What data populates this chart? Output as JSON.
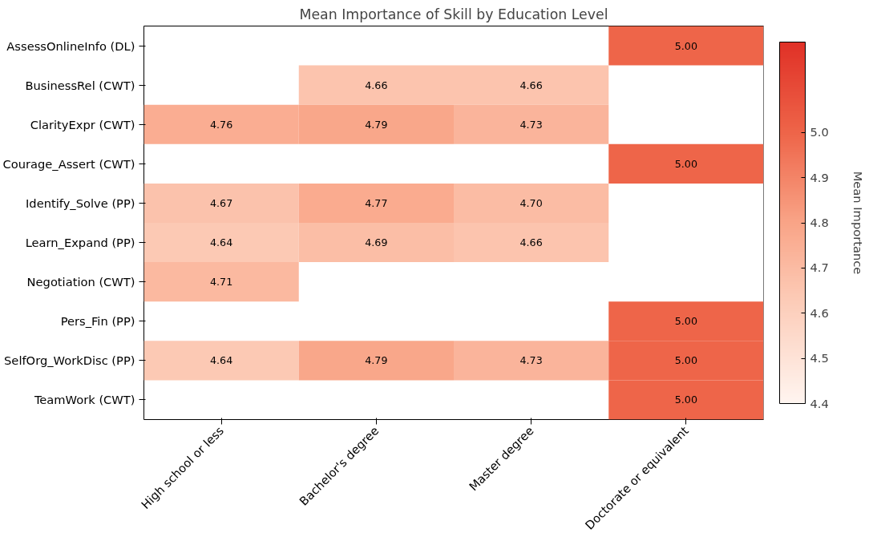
{
  "chart_data": {
    "type": "heatmap",
    "title": "Mean Importance of Skill by Education Level",
    "categories": [
      "High school or less",
      "Bachelor's degree",
      "Master degree",
      "Doctorate or equivalent"
    ],
    "y_categories": [
      "AssessOnlineInfo (DL)",
      "BusinessRel (CWT)",
      "ClarityExpr (CWT)",
      "Courage_Assert (CWT)",
      "Identify_Solve (PP)",
      "Learn_Expand (PP)",
      "Negotiation (CWT)",
      "Pers_Fin (PP)",
      "SelfOrg_WorkDisc (PP)",
      "TeamWork (CWT)"
    ],
    "cells": [
      [
        null,
        null,
        null,
        5.0
      ],
      [
        null,
        4.66,
        4.66,
        null
      ],
      [
        4.76,
        4.79,
        4.73,
        null
      ],
      [
        null,
        null,
        null,
        5.0
      ],
      [
        4.67,
        4.77,
        4.7,
        null
      ],
      [
        4.64,
        4.69,
        4.66,
        null
      ],
      [
        4.71,
        null,
        null,
        null
      ],
      [
        null,
        null,
        null,
        5.0
      ],
      [
        4.64,
        4.79,
        4.73,
        5.0
      ],
      [
        null,
        null,
        null,
        5.0
      ]
    ],
    "cell_labels": [
      [
        null,
        null,
        null,
        "5.00"
      ],
      [
        null,
        "4.66",
        "4.66",
        null
      ],
      [
        "4.76",
        "4.79",
        "4.73",
        null
      ],
      [
        null,
        null,
        null,
        "5.00"
      ],
      [
        "4.67",
        "4.77",
        "4.70",
        null
      ],
      [
        "4.64",
        "4.69",
        "4.66",
        null
      ],
      [
        "4.71",
        null,
        null,
        null
      ],
      [
        null,
        null,
        null,
        "5.00"
      ],
      [
        "4.64",
        "4.79",
        "4.73",
        "5.00"
      ],
      [
        null,
        null,
        null,
        "5.00"
      ]
    ],
    "clabel": "Mean Importance",
    "clim": [
      4.4,
      5.2
    ],
    "cticks": [
      4.4,
      4.5,
      4.6,
      4.7,
      4.8,
      4.9,
      {
        "value": 5.0,
        "label": "5.0"
      }
    ],
    "grid": false
  }
}
